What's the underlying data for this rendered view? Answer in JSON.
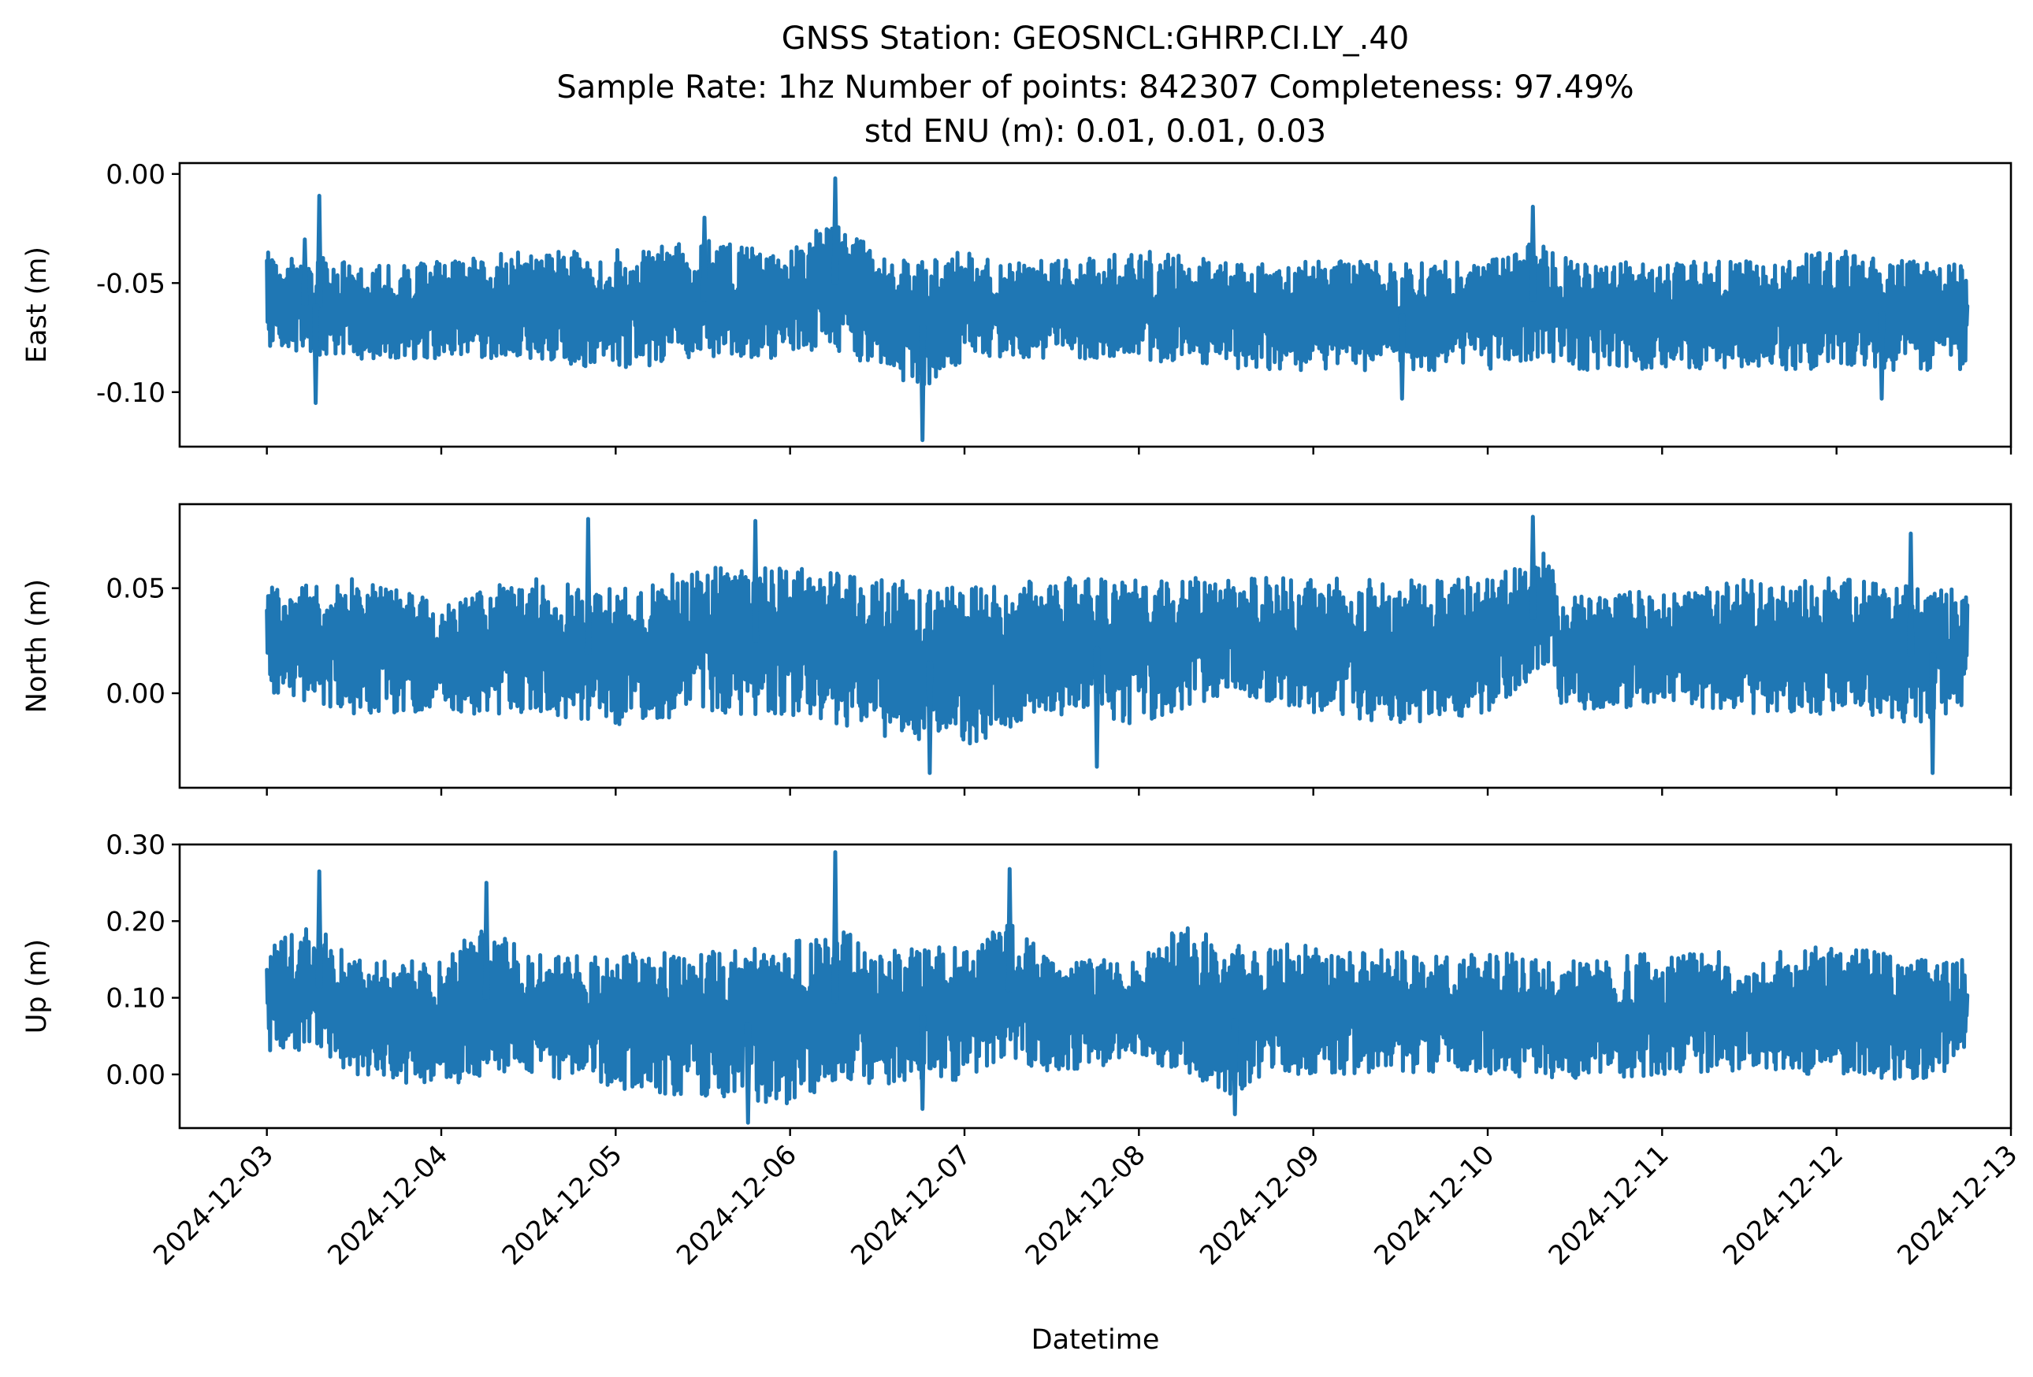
{
  "title_lines": [
    "GNSS Station: GEOSNCL:GHRP.CI.LY_.40",
    "Sample Rate: 1hz   Number of points: 842307    Completeness:  97.49%",
    "std ENU (m):  0.01, 0.01, 0.03"
  ],
  "chart_data": {
    "type": "line",
    "xlabel": "Datetime",
    "x_range": [
      "2024-12-03",
      "2024-12-12T18:00"
    ],
    "xlim": [
      "2024-12-02T12:00",
      "2024-12-13T00:00"
    ],
    "x_ticks": [
      "2024-12-03",
      "2024-12-04",
      "2024-12-05",
      "2024-12-06",
      "2024-12-07",
      "2024-12-08",
      "2024-12-09",
      "2024-12-10",
      "2024-12-11",
      "2024-12-12",
      "2024-12-13"
    ],
    "color": "#1f77b4",
    "grid": false,
    "panels": [
      {
        "ylabel": "East (m)",
        "ylim": [
          -0.125,
          0.005
        ],
        "y_ticks": [
          0.0,
          -0.05,
          -0.1
        ],
        "y_tick_labels": [
          "0.00",
          "-0.05",
          "-0.10"
        ],
        "envelope": {
          "x": [
            "2024-12-03T00:00",
            "2024-12-03T12:00",
            "2024-12-04T00:00",
            "2024-12-04T12:00",
            "2024-12-05T00:00",
            "2024-12-05T12:00",
            "2024-12-06T00:00",
            "2024-12-06T06:00",
            "2024-12-06T12:00",
            "2024-12-06T18:00",
            "2024-12-07T00:00",
            "2024-12-07T12:00",
            "2024-12-08T00:00",
            "2024-12-08T12:00",
            "2024-12-09T00:00",
            "2024-12-09T12:00",
            "2024-12-10T00:00",
            "2024-12-10T06:00",
            "2024-12-10T12:00",
            "2024-12-11T00:00",
            "2024-12-11T12:00",
            "2024-12-12T00:00",
            "2024-12-12T12:00",
            "2024-12-12T18:00"
          ],
          "upper": [
            -0.035,
            -0.04,
            -0.04,
            -0.035,
            -0.035,
            -0.03,
            -0.035,
            -0.02,
            -0.035,
            -0.04,
            -0.035,
            -0.04,
            -0.035,
            -0.04,
            -0.04,
            -0.04,
            -0.04,
            -0.03,
            -0.04,
            -0.04,
            -0.04,
            -0.035,
            -0.04,
            -0.04
          ],
          "lower": [
            -0.08,
            -0.085,
            -0.085,
            -0.085,
            -0.09,
            -0.085,
            -0.085,
            -0.08,
            -0.09,
            -0.1,
            -0.085,
            -0.085,
            -0.085,
            -0.09,
            -0.09,
            -0.09,
            -0.09,
            -0.085,
            -0.09,
            -0.09,
            -0.09,
            -0.09,
            -0.09,
            -0.09
          ]
        },
        "spikes": [
          {
            "x": "2024-12-03T05:00",
            "y": -0.03
          },
          {
            "x": "2024-12-03T07:00",
            "y": -0.01
          },
          {
            "x": "2024-12-03T06:30",
            "y": -0.105
          },
          {
            "x": "2024-12-05T12:00",
            "y": -0.02
          },
          {
            "x": "2024-12-06T06:00",
            "y": -0.002
          },
          {
            "x": "2024-12-06T18:00",
            "y": -0.122
          },
          {
            "x": "2024-12-10T06:00",
            "y": -0.015
          },
          {
            "x": "2024-12-09T12:00",
            "y": -0.103
          },
          {
            "x": "2024-12-12T06:00",
            "y": -0.103
          }
        ]
      },
      {
        "ylabel": "North (m)",
        "ylim": [
          -0.045,
          0.09
        ],
        "y_ticks": [
          0.05,
          0.0
        ],
        "y_tick_labels": [
          "0.05",
          "0.00"
        ],
        "envelope": {
          "x": [
            "2024-12-03T00:00",
            "2024-12-03T12:00",
            "2024-12-04T00:00",
            "2024-12-04T12:00",
            "2024-12-05T00:00",
            "2024-12-05T12:00",
            "2024-12-06T00:00",
            "2024-12-06T12:00",
            "2024-12-07T00:00",
            "2024-12-07T12:00",
            "2024-12-08T00:00",
            "2024-12-08T12:00",
            "2024-12-09T00:00",
            "2024-12-09T12:00",
            "2024-12-10T00:00",
            "2024-12-10T09:00",
            "2024-12-10T10:00",
            "2024-12-11T00:00",
            "2024-12-11T12:00",
            "2024-12-12T00:00",
            "2024-12-12T12:00",
            "2024-12-12T18:00"
          ],
          "upper": [
            0.05,
            0.055,
            0.045,
            0.055,
            0.05,
            0.06,
            0.06,
            0.055,
            0.05,
            0.055,
            0.055,
            0.055,
            0.055,
            0.055,
            0.055,
            0.07,
            0.045,
            0.05,
            0.055,
            0.055,
            0.05,
            0.05
          ],
          "lower": [
            0.0,
            -0.01,
            -0.01,
            -0.01,
            -0.015,
            -0.01,
            -0.01,
            -0.02,
            -0.025,
            -0.01,
            -0.015,
            0.0,
            -0.01,
            -0.015,
            -0.01,
            0.015,
            -0.01,
            -0.005,
            -0.01,
            -0.01,
            -0.015,
            -0.005
          ]
        },
        "spikes": [
          {
            "x": "2024-12-04T20:00",
            "y": 0.083
          },
          {
            "x": "2024-12-05T19:00",
            "y": 0.082
          },
          {
            "x": "2024-12-10T06:00",
            "y": 0.084
          },
          {
            "x": "2024-12-12T10:00",
            "y": 0.076
          },
          {
            "x": "2024-12-06T19:00",
            "y": -0.038
          },
          {
            "x": "2024-12-12T13:00",
            "y": -0.038
          },
          {
            "x": "2024-12-07T18:00",
            "y": -0.035
          }
        ]
      },
      {
        "ylabel": "Up (m)",
        "ylim": [
          -0.07,
          0.3
        ],
        "y_ticks": [
          0.3,
          0.2,
          0.1,
          0.0
        ],
        "y_tick_labels": [
          "0.30",
          "0.20",
          "0.10",
          "0.00"
        ],
        "envelope": {
          "x": [
            "2024-12-03T00:00",
            "2024-12-03T07:00",
            "2024-12-03T12:00",
            "2024-12-04T00:00",
            "2024-12-04T06:00",
            "2024-12-04T12:00",
            "2024-12-05T00:00",
            "2024-12-05T12:00",
            "2024-12-06T00:00",
            "2024-12-06T06:00",
            "2024-12-06T12:00",
            "2024-12-07T00:00",
            "2024-12-07T06:00",
            "2024-12-07T12:00",
            "2024-12-08T00:00",
            "2024-12-08T06:00",
            "2024-12-08T12:00",
            "2024-12-09T00:00",
            "2024-12-09T12:00",
            "2024-12-10T00:00",
            "2024-12-10T12:00",
            "2024-12-11T00:00",
            "2024-12-11T12:00",
            "2024-12-12T00:00",
            "2024-12-12T12:00",
            "2024-12-12T18:00"
          ],
          "upper": [
            0.17,
            0.2,
            0.15,
            0.15,
            0.2,
            0.16,
            0.16,
            0.16,
            0.17,
            0.2,
            0.16,
            0.17,
            0.2,
            0.15,
            0.15,
            0.2,
            0.17,
            0.17,
            0.16,
            0.16,
            0.15,
            0.16,
            0.16,
            0.17,
            0.15,
            0.15
          ],
          "lower": [
            0.03,
            0.03,
            0.0,
            -0.02,
            0.0,
            0.0,
            -0.02,
            -0.03,
            -0.04,
            -0.01,
            -0.02,
            -0.01,
            0.02,
            0.0,
            0.02,
            0.0,
            -0.03,
            0.0,
            0.0,
            0.0,
            -0.01,
            0.0,
            0.0,
            0.0,
            -0.01,
            0.02
          ]
        },
        "spikes": [
          {
            "x": "2024-12-03T07:00",
            "y": 0.265
          },
          {
            "x": "2024-12-04T06:00",
            "y": 0.25
          },
          {
            "x": "2024-12-06T06:00",
            "y": 0.29
          },
          {
            "x": "2024-12-07T06:00",
            "y": 0.268
          },
          {
            "x": "2024-12-05T18:00",
            "y": -0.063
          },
          {
            "x": "2024-12-08T13:00",
            "y": -0.052
          },
          {
            "x": "2024-12-06T18:00",
            "y": -0.045
          }
        ]
      }
    ]
  }
}
